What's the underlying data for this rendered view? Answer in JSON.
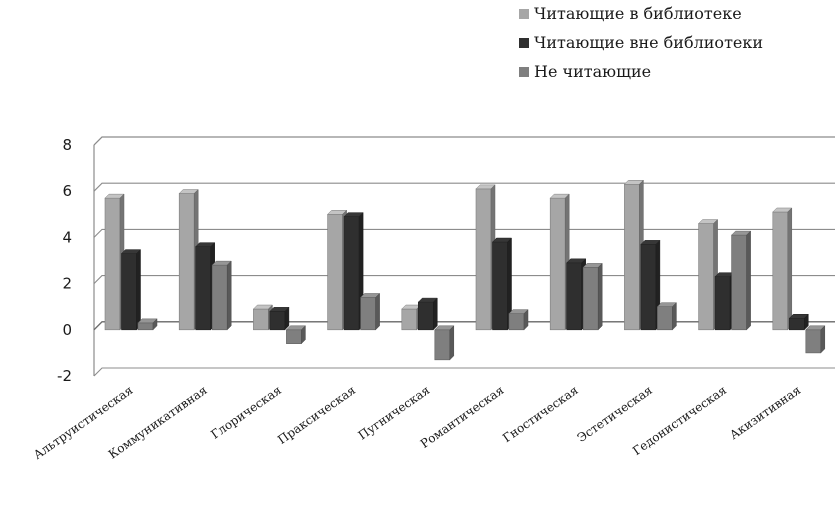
{
  "chart_data": {
    "type": "bar",
    "title": "",
    "xlabel": "",
    "ylabel": "",
    "ylim": [
      -2,
      8
    ],
    "yticks": [
      "-2",
      "0",
      "2",
      "4",
      "6",
      "8"
    ],
    "categories": [
      "Альтруистическая",
      "Коммуникативная",
      "Глорическая",
      "Праксическая",
      "Пугническая",
      "Романтическая",
      "Гностическая",
      "Эстетическая",
      "Гедонистическая",
      "Акизитивная"
    ],
    "series": [
      {
        "name": "Читающие в библиотеке",
        "color": "#a6a6a6",
        "values": [
          5.7,
          5.9,
          0.9,
          5.0,
          0.9,
          6.1,
          5.7,
          6.3,
          4.6,
          5.1
        ]
      },
      {
        "name": "Читающие вне библиотеки",
        "color": "#2f2f2f",
        "values": [
          3.3,
          3.6,
          0.8,
          4.9,
          1.2,
          3.8,
          2.9,
          3.7,
          2.3,
          0.5
        ]
      },
      {
        "name": "Не читающие",
        "color": "#7f7f7f",
        "values": [
          0.3,
          2.8,
          -0.6,
          1.4,
          -1.3,
          0.7,
          2.7,
          1.0,
          4.1,
          -1.0
        ]
      }
    ],
    "grid": true,
    "legend": "top-right"
  }
}
